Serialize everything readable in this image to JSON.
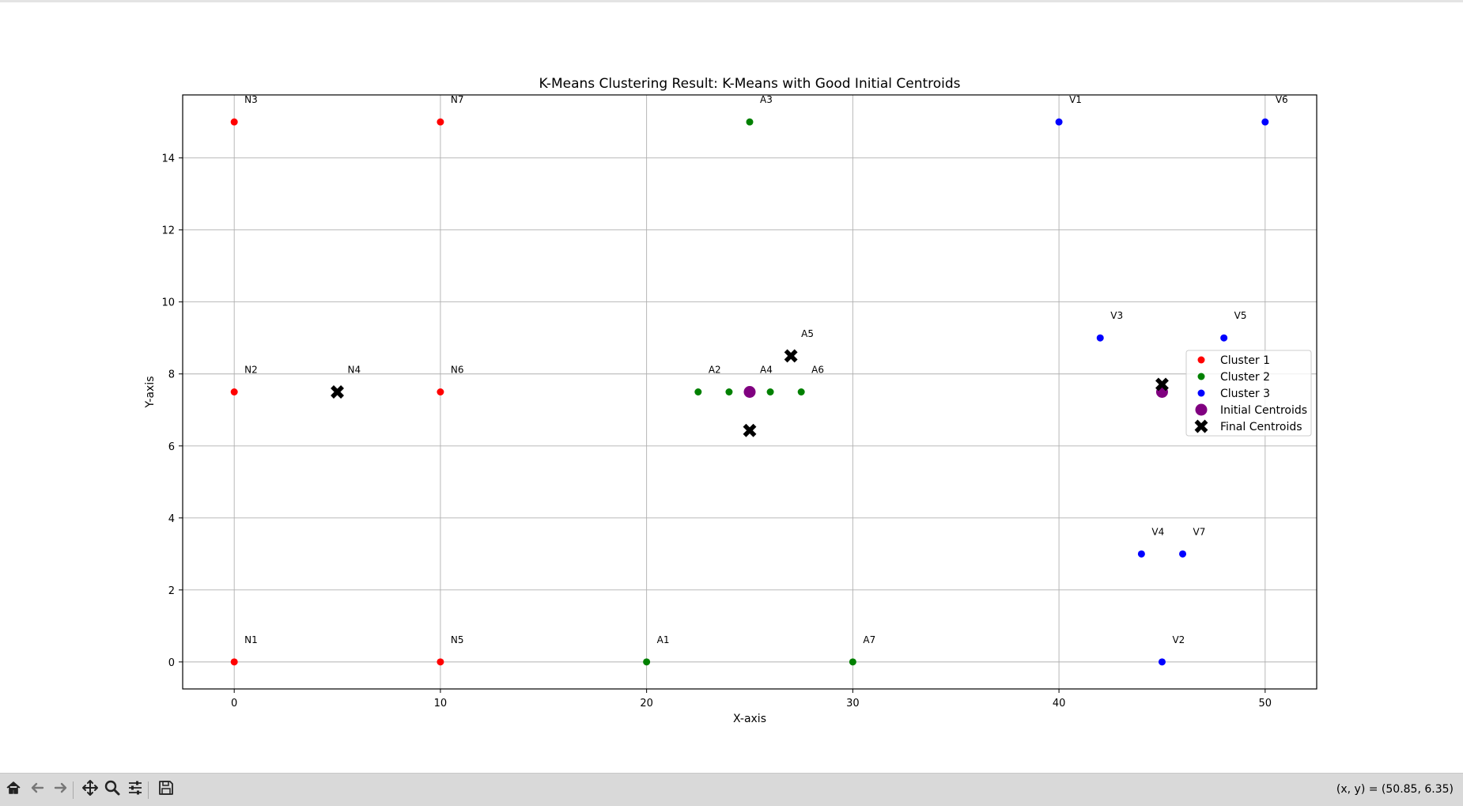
{
  "chart_data": {
    "type": "scatter",
    "title": "K-Means Clustering Result: K-Means with Good Initial Centroids",
    "xlabel": "X-axis",
    "ylabel": "Y-axis",
    "xlim": [
      -2.5,
      52.5
    ],
    "ylim": [
      -0.75,
      15.75
    ],
    "xticks": [
      0,
      10,
      20,
      30,
      40,
      50
    ],
    "yticks": [
      0,
      2,
      4,
      6,
      8,
      10,
      12,
      14
    ],
    "grid": true,
    "legend_position": "center-right",
    "series": [
      {
        "name": "Cluster 1",
        "color": "#ff0000",
        "marker": "dot",
        "points": [
          {
            "label": "N1",
            "x": 0,
            "y": 0
          },
          {
            "label": "N2",
            "x": 0,
            "y": 7.5
          },
          {
            "label": "N3",
            "x": 0,
            "y": 15
          },
          {
            "label": "N5",
            "x": 10,
            "y": 0
          },
          {
            "label": "N6",
            "x": 10,
            "y": 7.5
          },
          {
            "label": "N7",
            "x": 10,
            "y": 15
          }
        ]
      },
      {
        "name": "Cluster 2",
        "color": "#008000",
        "marker": "dot",
        "points": [
          {
            "label": "A1",
            "x": 20,
            "y": 0
          },
          {
            "label": "A2",
            "x": 22.5,
            "y": 7.5
          },
          {
            "label": "",
            "x": 24,
            "y": 7.5
          },
          {
            "label": "A3",
            "x": 25,
            "y": 15
          },
          {
            "label": "",
            "x": 26,
            "y": 7.5
          },
          {
            "label": "A6",
            "x": 27.5,
            "y": 7.5
          },
          {
            "label": "A7",
            "x": 30,
            "y": 0
          }
        ]
      },
      {
        "name": "Cluster 3",
        "color": "#0000ff",
        "marker": "dot",
        "points": [
          {
            "label": "V1",
            "x": 40,
            "y": 15
          },
          {
            "label": "V2",
            "x": 45,
            "y": 0
          },
          {
            "label": "V3",
            "x": 42,
            "y": 9
          },
          {
            "label": "V4",
            "x": 44,
            "y": 3
          },
          {
            "label": "V5",
            "x": 48,
            "y": 9
          },
          {
            "label": "V6",
            "x": 50,
            "y": 15
          },
          {
            "label": "V7",
            "x": 46,
            "y": 3
          }
        ]
      },
      {
        "name": "Initial Centroids",
        "color": "#800080",
        "marker": "big-dot",
        "points": [
          {
            "label": "A4",
            "x": 25,
            "y": 7.5
          },
          {
            "label": "",
            "x": 45,
            "y": 7.5
          }
        ]
      },
      {
        "name": "Final Centroids",
        "color": "#000000",
        "marker": "x",
        "points": [
          {
            "label": "N4",
            "x": 5,
            "y": 7.5
          },
          {
            "label": "",
            "x": 25,
            "y": 6.43
          },
          {
            "label": "A5",
            "x": 27,
            "y": 8.5
          },
          {
            "label": "",
            "x": 45,
            "y": 7.71
          }
        ]
      }
    ]
  },
  "toolbar": {
    "buttons": [
      {
        "name": "home-icon",
        "glyph": "home"
      },
      {
        "name": "back-arrow-icon",
        "glyph": "back"
      },
      {
        "name": "forward-arrow-icon",
        "glyph": "forward"
      },
      {
        "name": "pan-move-icon",
        "glyph": "pan"
      },
      {
        "name": "zoom-magnifier-icon",
        "glyph": "zoom"
      },
      {
        "name": "configure-subplots-icon",
        "glyph": "sliders"
      },
      {
        "name": "save-figure-icon",
        "glyph": "save"
      }
    ],
    "coords_text": "(x, y) = (50.85, 6.35)"
  }
}
